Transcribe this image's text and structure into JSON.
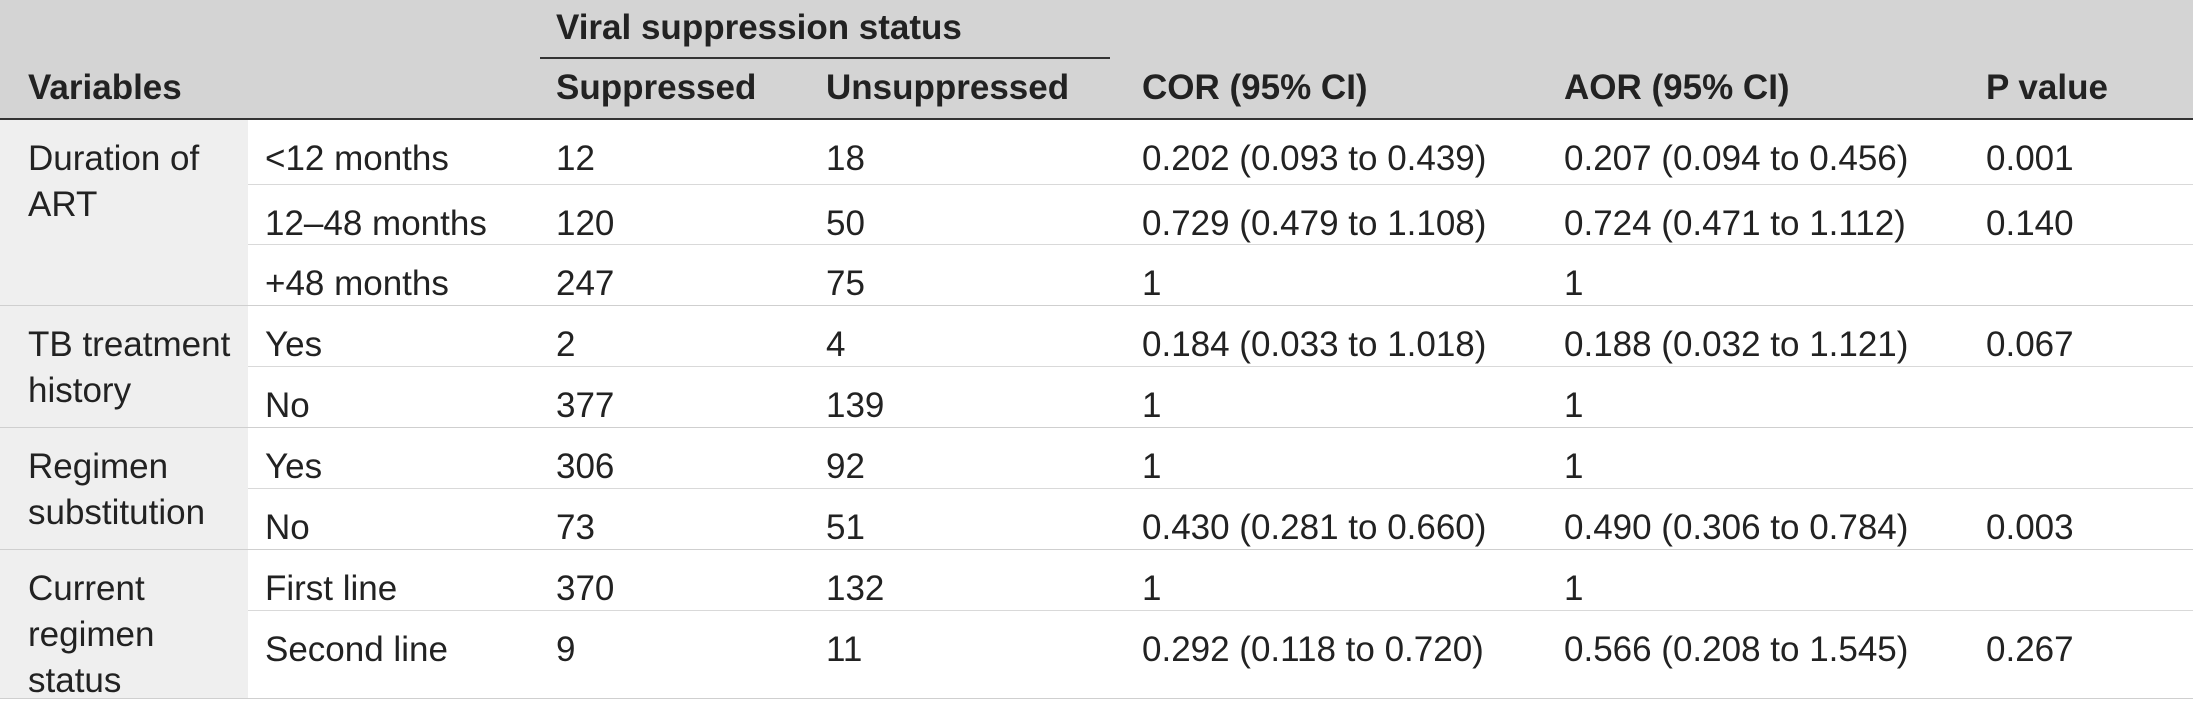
{
  "header": {
    "group_title": "Viral suppression status",
    "variables": "Variables",
    "suppressed": "Suppressed",
    "unsuppressed": "Unsuppressed",
    "cor": "COR (95% CI)",
    "aor": "AOR (95% CI)",
    "p_value": "P value"
  },
  "groups": [
    {
      "name": "Duration of ART",
      "rows": [
        {
          "level": "<12 months",
          "suppressed": "12",
          "unsuppressed": "18",
          "cor": "0.202 (0.093 to 0.439)",
          "aor": "0.207 (0.094 to 0.456)",
          "p": "0.001"
        },
        {
          "level": "12–48 months",
          "suppressed": "120",
          "unsuppressed": "50",
          "cor": "0.729 (0.479 to 1.108)",
          "aor": "0.724 (0.471 to 1.112)",
          "p": "0.140"
        },
        {
          "level": "+48 months",
          "suppressed": "247",
          "unsuppressed": "75",
          "cor": "1",
          "aor": "1",
          "p": ""
        }
      ]
    },
    {
      "name": "TB treatment history",
      "rows": [
        {
          "level": "Yes",
          "suppressed": "2",
          "unsuppressed": "4",
          "cor": "0.184 (0.033 to 1.018)",
          "aor": "0.188 (0.032 to 1.121)",
          "p": "0.067"
        },
        {
          "level": "No",
          "suppressed": "377",
          "unsuppressed": "139",
          "cor": "1",
          "aor": "1",
          "p": ""
        }
      ]
    },
    {
      "name": "Regimen substitution",
      "rows": [
        {
          "level": "Yes",
          "suppressed": "306",
          "unsuppressed": "92",
          "cor": "1",
          "aor": "1",
          "p": ""
        },
        {
          "level": "No",
          "suppressed": "73",
          "unsuppressed": "51",
          "cor": "0.430 (0.281 to 0.660)",
          "aor": "0.490 (0.306 to 0.784)",
          "p": "0.003"
        }
      ]
    },
    {
      "name": "Current regimen status",
      "rows": [
        {
          "level": "First line",
          "suppressed": "370",
          "unsuppressed": "132",
          "cor": "1",
          "aor": "1",
          "p": ""
        },
        {
          "level": "Second line",
          "suppressed": "9",
          "unsuppressed": "11",
          "cor": "0.292 (0.118 to 0.720)",
          "aor": "0.566 (0.208 to 1.545)",
          "p": "0.267"
        }
      ]
    }
  ]
}
